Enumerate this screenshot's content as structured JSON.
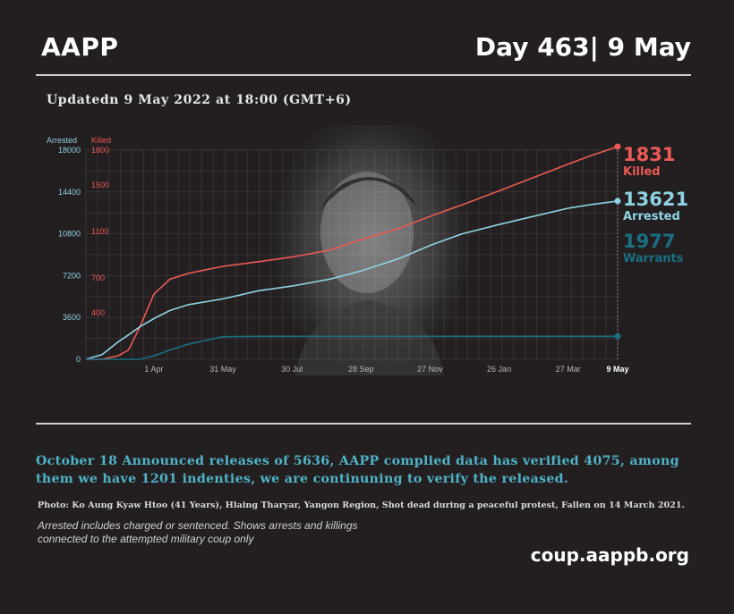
{
  "header": {
    "brand": "AAPP",
    "day": "Day 463| 9 May"
  },
  "updated": "Updatedn 9 May 2022 at 18:00 (GMT+6)",
  "colors": {
    "killed": "#ec5a55",
    "arrested": "#8fd2e3",
    "warrants": "#1a6f82",
    "background": "#231f20"
  },
  "chart_data": {
    "type": "line",
    "axis_titles": {
      "left": "Arrested",
      "right": "Killed"
    },
    "x_ticks": [
      "1 Apr",
      "31 May",
      "30 Jul",
      "28 Sep",
      "27 Nov",
      "26 Jan",
      "27 Mar",
      "9 May"
    ],
    "y_left_ticks": [
      0,
      3600,
      7200,
      10800,
      14400,
      18000
    ],
    "y_right_ticks": [
      400,
      700,
      1100,
      1500,
      1800
    ],
    "y_left_range": [
      0,
      18000
    ],
    "y_right_range": [
      0,
      1800
    ],
    "x": [
      "2021-02-01",
      "2021-02-15",
      "2021-03-01",
      "2021-03-10",
      "2021-03-20",
      "2021-04-01",
      "2021-04-15",
      "2021-05-01",
      "2021-05-31",
      "2021-07-01",
      "2021-07-30",
      "2021-09-01",
      "2021-09-28",
      "2021-11-01",
      "2021-11-27",
      "2021-12-25",
      "2022-01-26",
      "2022-03-01",
      "2022-03-27",
      "2022-04-15",
      "2022-05-09"
    ],
    "series": [
      {
        "name": "Killed",
        "axis": "right",
        "values": [
          0,
          0,
          30,
          80,
          280,
          560,
          690,
          740,
          800,
          840,
          880,
          940,
          1030,
          1130,
          1230,
          1330,
          1450,
          1580,
          1680,
          1750,
          1831
        ]
      },
      {
        "name": "Arrested",
        "axis": "left",
        "values": [
          0,
          400,
          1500,
          2100,
          2800,
          3500,
          4200,
          4700,
          5200,
          5900,
          6300,
          6900,
          7600,
          8700,
          9800,
          10800,
          11600,
          12400,
          13000,
          13300,
          13621
        ]
      },
      {
        "name": "Warrants",
        "axis": "left",
        "values": [
          0,
          0,
          0,
          0,
          0,
          300,
          800,
          1300,
          1950,
          1977,
          1977,
          1977,
          1977,
          1977,
          1977,
          1977,
          1977,
          1977,
          1977,
          1977,
          1977
        ]
      }
    ],
    "end_labels": [
      {
        "value": "1831",
        "label": "Killed"
      },
      {
        "value": "13621",
        "label": "Arrested"
      },
      {
        "value": "1977",
        "label": "Warrants"
      }
    ],
    "grid": true
  },
  "note": "October 18 Announced releases of 5636, AAPP complied data has verified 4075, among them we have 1201 indenties, we are continuning to verify the released.",
  "photo_caption": "Photo: Ko Aung Kyaw Htoo (41 Years), Hlaing Tharyar, Yangon Region, Shot dead during a peaceful protest, Fallen on 14 March 2021.",
  "footnote": "Arrested includes charged or sentenced. Shows arrests and killings connected to the attempted military coup only",
  "url": "coup.aappb.org"
}
